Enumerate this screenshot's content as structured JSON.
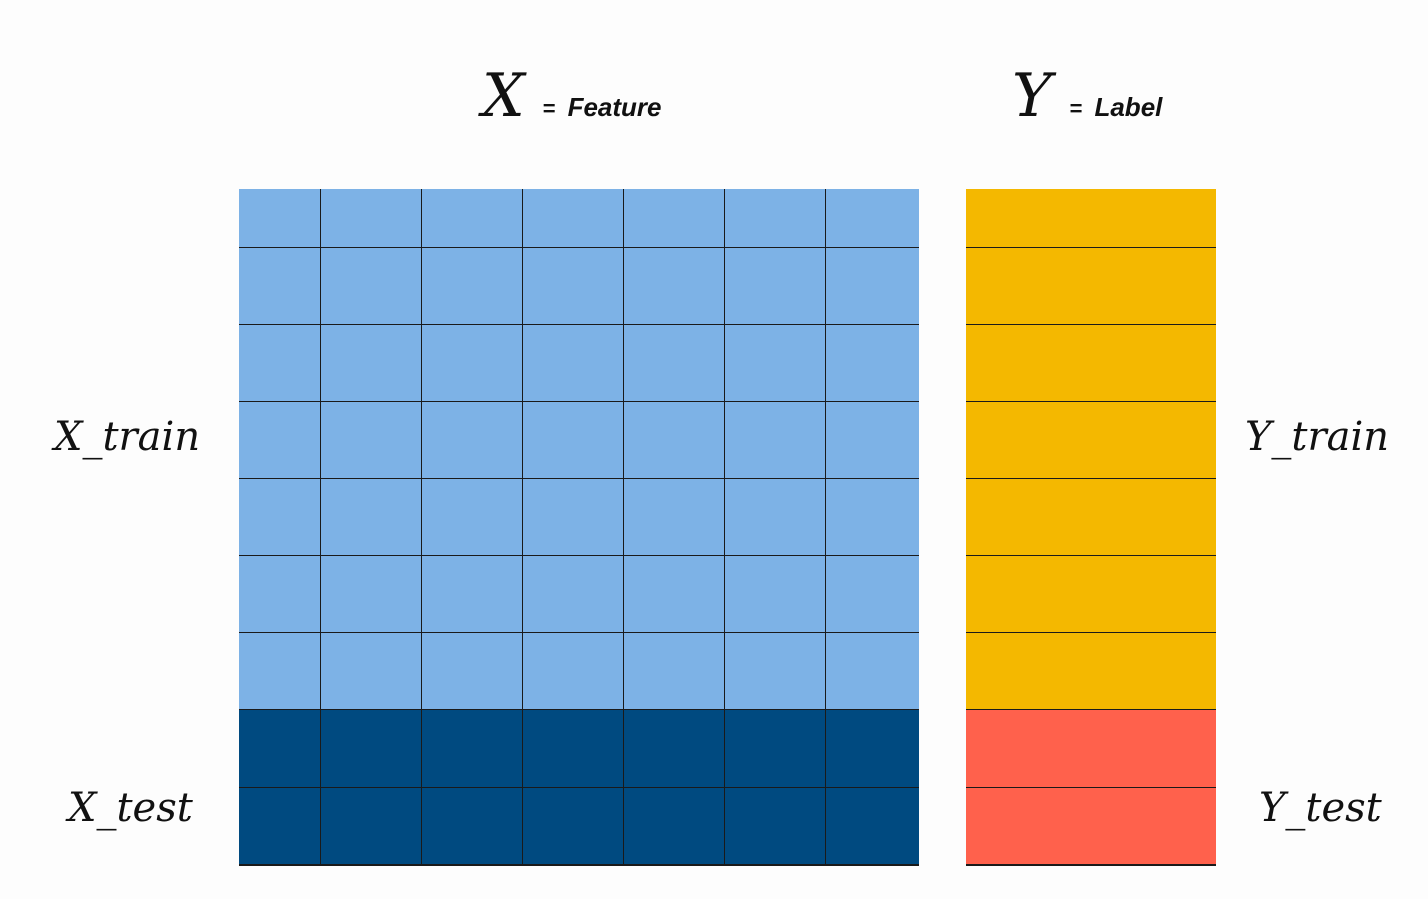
{
  "header_x": {
    "symbol": "X",
    "equals": "=",
    "word": "Feature"
  },
  "header_y": {
    "symbol": "Y",
    "equals": "=",
    "word": "Label"
  },
  "labels": {
    "x_train": "X_train",
    "x_test": "X_test",
    "y_train": "Y_train",
    "y_test": "Y_test"
  },
  "matrix": {
    "feature_columns": 7,
    "train_rows": 7,
    "test_rows": 2
  },
  "colors": {
    "x_train": "#7db2e6",
    "x_test": "#004a80",
    "y_train": "#f4b800",
    "y_test": "#ff614c",
    "grid_lines": "#1a1a1a"
  }
}
